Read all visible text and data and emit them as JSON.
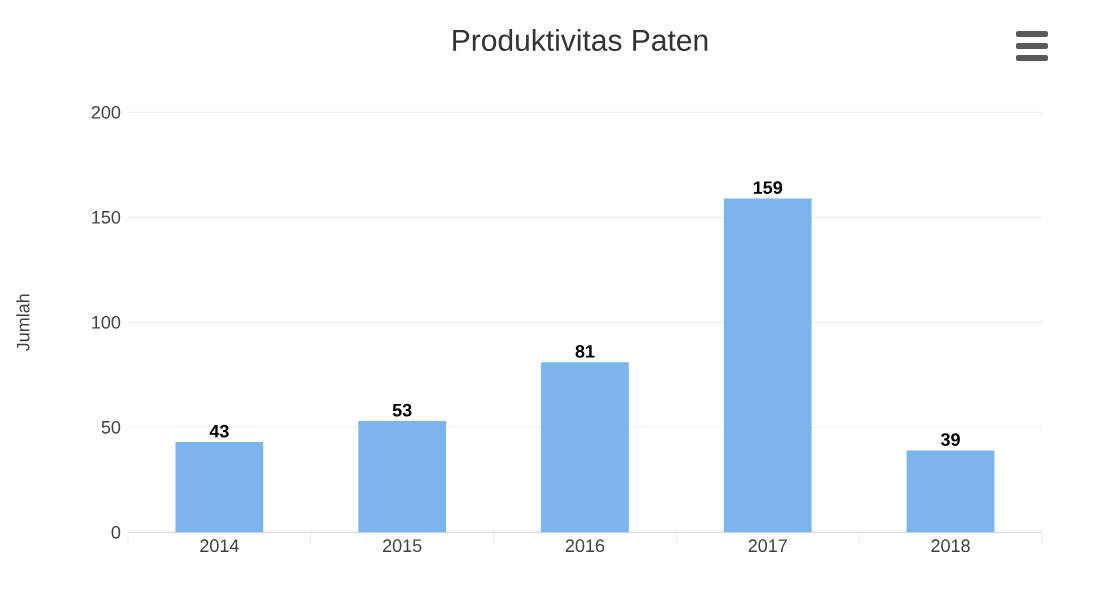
{
  "chart_data": {
    "type": "bar",
    "title": "Produktivitas Paten",
    "ylabel": "Jumlah",
    "categories": [
      "2014",
      "2015",
      "2016",
      "2017",
      "2018"
    ],
    "values": [
      43,
      53,
      81,
      159,
      39
    ],
    "color": "#7cb5ec",
    "ylim": [
      0,
      200
    ],
    "yticks": [
      0,
      50,
      100,
      150,
      200
    ],
    "grid": "y",
    "data_labels": true
  }
}
